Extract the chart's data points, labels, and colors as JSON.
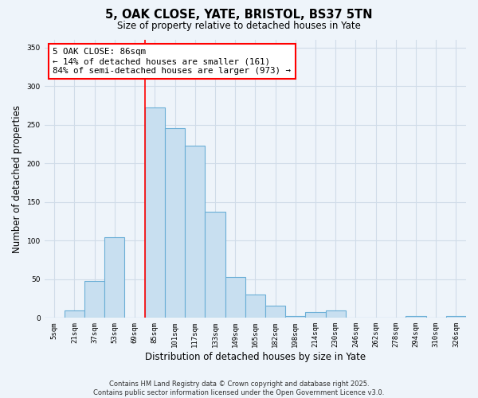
{
  "title_line1": "5, OAK CLOSE, YATE, BRISTOL, BS37 5TN",
  "title_line2": "Size of property relative to detached houses in Yate",
  "xlabel": "Distribution of detached houses by size in Yate",
  "ylabel": "Number of detached properties",
  "bar_labels": [
    "5sqm",
    "21sqm",
    "37sqm",
    "53sqm",
    "69sqm",
    "85sqm",
    "101sqm",
    "117sqm",
    "133sqm",
    "149sqm",
    "165sqm",
    "182sqm",
    "198sqm",
    "214sqm",
    "230sqm",
    "246sqm",
    "262sqm",
    "278sqm",
    "294sqm",
    "310sqm",
    "326sqm"
  ],
  "bar_values": [
    0,
    10,
    48,
    104,
    0,
    272,
    246,
    223,
    137,
    53,
    30,
    16,
    2,
    8,
    10,
    0,
    0,
    0,
    2,
    0,
    2
  ],
  "bar_color": "#c8dff0",
  "bar_edge_color": "#6aaed6",
  "red_line_index": 5,
  "annotation_line1": "5 OAK CLOSE: 86sqm",
  "annotation_line2": "← 14% of detached houses are smaller (161)",
  "annotation_line3": "84% of semi-detached houses are larger (973) →",
  "annotation_box_color": "white",
  "annotation_box_edge": "red",
  "ylim": [
    0,
    360
  ],
  "yticks": [
    0,
    50,
    100,
    150,
    200,
    250,
    300,
    350
  ],
  "footer_line1": "Contains HM Land Registry data © Crown copyright and database right 2025.",
  "footer_line2": "Contains public sector information licensed under the Open Government Licence v3.0.",
  "bg_color": "#eef4fa",
  "grid_color": "#d0dce8"
}
